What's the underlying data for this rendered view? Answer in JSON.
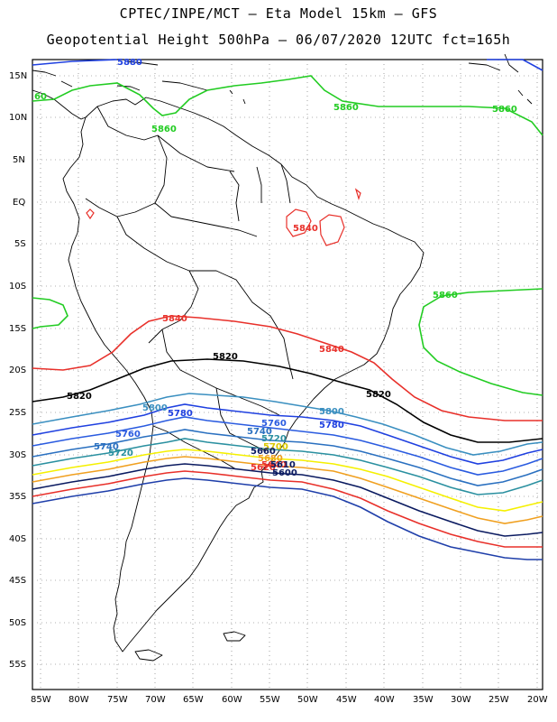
{
  "title_line1": "CPTEC/INPE/MCT –  Eta Model 15km – GFS",
  "title_line2": "Geopotential Height 500hPa – 06/07/2020 12UTC fct=165h",
  "colors": {
    "c5580": "#1a3ccc",
    "c5600": "#1f3faa",
    "c5620": "#e8302a",
    "c5640": "#e8302a",
    "c5660": "#22cc22",
    "c5720": "#3a8fc0",
    "c5740": "#2a70c0",
    "c5760": "#2a5be0",
    "c5780": "#1f40e0",
    "c5800": "#3a8fc0",
    "c5820": "#000000",
    "c5840": "#e8302a",
    "c5860": "#22cc22",
    "c5880": "#1f40e0",
    "yellow": "#f5f000",
    "orange": "#f0a020",
    "navy": "#0a1a60",
    "teal": "#2a90a0"
  },
  "lat_ticks": [
    "15N",
    "10N",
    "5N",
    "EQ",
    "5S",
    "10S",
    "15S",
    "20S",
    "25S",
    "30S",
    "35S",
    "40S",
    "45S",
    "50S",
    "55S"
  ],
  "lon_ticks": [
    "85W",
    "80W",
    "75W",
    "70W",
    "65W",
    "60W",
    "55W",
    "50W",
    "45W",
    "40W",
    "35W",
    "30W",
    "25W",
    "20W"
  ],
  "contour_labels": [
    {
      "text": "5880",
      "color": "c5880"
    },
    {
      "text": "5860",
      "color": "c5860"
    },
    {
      "text": "5860",
      "color": "c5860"
    },
    {
      "text": "5860",
      "color": "c5860"
    },
    {
      "text": "5860",
      "color": "c5860"
    },
    {
      "text": "60",
      "color": "c5860"
    },
    {
      "text": "5840",
      "color": "c5840"
    },
    {
      "text": "5840",
      "color": "c5840"
    },
    {
      "text": "5840",
      "color": "c5840"
    },
    {
      "text": "5820",
      "color": "c5820"
    },
    {
      "text": "5820",
      "color": "c5820"
    },
    {
      "text": "5820",
      "color": "c5820"
    },
    {
      "text": "5800",
      "color": "c5800"
    },
    {
      "text": "5800",
      "color": "c5800"
    },
    {
      "text": "5780",
      "color": "c5780"
    },
    {
      "text": "5780",
      "color": "c5780"
    },
    {
      "text": "5760",
      "color": "c5760"
    },
    {
      "text": "5760",
      "color": "c5760"
    },
    {
      "text": "5740",
      "color": "c5740"
    },
    {
      "text": "5740",
      "color": "c5740"
    },
    {
      "text": "5720",
      "color": "c5720"
    },
    {
      "text": "5720",
      "color": "c5720"
    },
    {
      "text": "5700",
      "color": "yellow"
    },
    {
      "text": "5680",
      "color": "orange"
    },
    {
      "text": "5660",
      "color": "navy"
    },
    {
      "text": "5640",
      "color": "c5640"
    },
    {
      "text": "5620",
      "color": "c5620"
    },
    {
      "text": "5610",
      "color": "navy"
    },
    {
      "text": "5600",
      "color": "navy"
    }
  ]
}
